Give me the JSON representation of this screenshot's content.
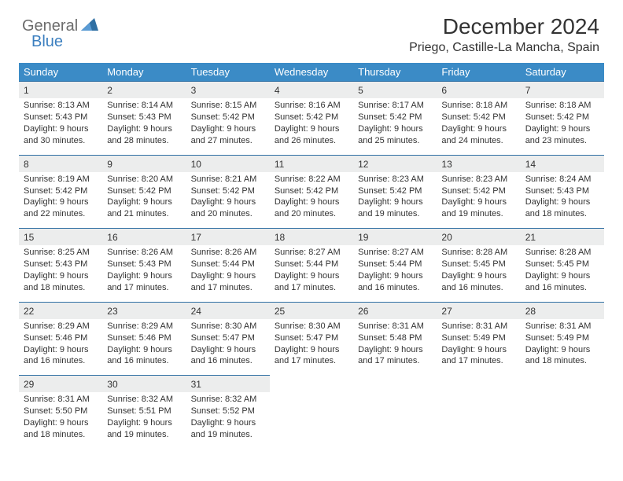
{
  "logo": {
    "part1": "General",
    "part2": "Blue"
  },
  "title": "December 2024",
  "location": "Priego, Castille-La Mancha, Spain",
  "colors": {
    "header_bg": "#3b8bc6",
    "header_text": "#ffffff",
    "daynum_bg": "#eceded",
    "daynum_border": "#2f6fa3",
    "text": "#333333",
    "logo_grey": "#6c6c6c",
    "logo_blue": "#3b7fbf",
    "background": "#ffffff"
  },
  "weekdays": [
    "Sunday",
    "Monday",
    "Tuesday",
    "Wednesday",
    "Thursday",
    "Friday",
    "Saturday"
  ],
  "weeks": [
    [
      {
        "day": "1",
        "sunrise": "8:13 AM",
        "sunset": "5:43 PM",
        "daylight": "9 hours and 30 minutes."
      },
      {
        "day": "2",
        "sunrise": "8:14 AM",
        "sunset": "5:43 PM",
        "daylight": "9 hours and 28 minutes."
      },
      {
        "day": "3",
        "sunrise": "8:15 AM",
        "sunset": "5:42 PM",
        "daylight": "9 hours and 27 minutes."
      },
      {
        "day": "4",
        "sunrise": "8:16 AM",
        "sunset": "5:42 PM",
        "daylight": "9 hours and 26 minutes."
      },
      {
        "day": "5",
        "sunrise": "8:17 AM",
        "sunset": "5:42 PM",
        "daylight": "9 hours and 25 minutes."
      },
      {
        "day": "6",
        "sunrise": "8:18 AM",
        "sunset": "5:42 PM",
        "daylight": "9 hours and 24 minutes."
      },
      {
        "day": "7",
        "sunrise": "8:18 AM",
        "sunset": "5:42 PM",
        "daylight": "9 hours and 23 minutes."
      }
    ],
    [
      {
        "day": "8",
        "sunrise": "8:19 AM",
        "sunset": "5:42 PM",
        "daylight": "9 hours and 22 minutes."
      },
      {
        "day": "9",
        "sunrise": "8:20 AM",
        "sunset": "5:42 PM",
        "daylight": "9 hours and 21 minutes."
      },
      {
        "day": "10",
        "sunrise": "8:21 AM",
        "sunset": "5:42 PM",
        "daylight": "9 hours and 20 minutes."
      },
      {
        "day": "11",
        "sunrise": "8:22 AM",
        "sunset": "5:42 PM",
        "daylight": "9 hours and 20 minutes."
      },
      {
        "day": "12",
        "sunrise": "8:23 AM",
        "sunset": "5:42 PM",
        "daylight": "9 hours and 19 minutes."
      },
      {
        "day": "13",
        "sunrise": "8:23 AM",
        "sunset": "5:42 PM",
        "daylight": "9 hours and 19 minutes."
      },
      {
        "day": "14",
        "sunrise": "8:24 AM",
        "sunset": "5:43 PM",
        "daylight": "9 hours and 18 minutes."
      }
    ],
    [
      {
        "day": "15",
        "sunrise": "8:25 AM",
        "sunset": "5:43 PM",
        "daylight": "9 hours and 18 minutes."
      },
      {
        "day": "16",
        "sunrise": "8:26 AM",
        "sunset": "5:43 PM",
        "daylight": "9 hours and 17 minutes."
      },
      {
        "day": "17",
        "sunrise": "8:26 AM",
        "sunset": "5:44 PM",
        "daylight": "9 hours and 17 minutes."
      },
      {
        "day": "18",
        "sunrise": "8:27 AM",
        "sunset": "5:44 PM",
        "daylight": "9 hours and 17 minutes."
      },
      {
        "day": "19",
        "sunrise": "8:27 AM",
        "sunset": "5:44 PM",
        "daylight": "9 hours and 16 minutes."
      },
      {
        "day": "20",
        "sunrise": "8:28 AM",
        "sunset": "5:45 PM",
        "daylight": "9 hours and 16 minutes."
      },
      {
        "day": "21",
        "sunrise": "8:28 AM",
        "sunset": "5:45 PM",
        "daylight": "9 hours and 16 minutes."
      }
    ],
    [
      {
        "day": "22",
        "sunrise": "8:29 AM",
        "sunset": "5:46 PM",
        "daylight": "9 hours and 16 minutes."
      },
      {
        "day": "23",
        "sunrise": "8:29 AM",
        "sunset": "5:46 PM",
        "daylight": "9 hours and 16 minutes."
      },
      {
        "day": "24",
        "sunrise": "8:30 AM",
        "sunset": "5:47 PM",
        "daylight": "9 hours and 16 minutes."
      },
      {
        "day": "25",
        "sunrise": "8:30 AM",
        "sunset": "5:47 PM",
        "daylight": "9 hours and 17 minutes."
      },
      {
        "day": "26",
        "sunrise": "8:31 AM",
        "sunset": "5:48 PM",
        "daylight": "9 hours and 17 minutes."
      },
      {
        "day": "27",
        "sunrise": "8:31 AM",
        "sunset": "5:49 PM",
        "daylight": "9 hours and 17 minutes."
      },
      {
        "day": "28",
        "sunrise": "8:31 AM",
        "sunset": "5:49 PM",
        "daylight": "9 hours and 18 minutes."
      }
    ],
    [
      {
        "day": "29",
        "sunrise": "8:31 AM",
        "sunset": "5:50 PM",
        "daylight": "9 hours and 18 minutes."
      },
      {
        "day": "30",
        "sunrise": "8:32 AM",
        "sunset": "5:51 PM",
        "daylight": "9 hours and 19 minutes."
      },
      {
        "day": "31",
        "sunrise": "8:32 AM",
        "sunset": "5:52 PM",
        "daylight": "9 hours and 19 minutes."
      },
      null,
      null,
      null,
      null
    ]
  ],
  "labels": {
    "sunrise": "Sunrise:",
    "sunset": "Sunset:",
    "daylight": "Daylight:"
  }
}
